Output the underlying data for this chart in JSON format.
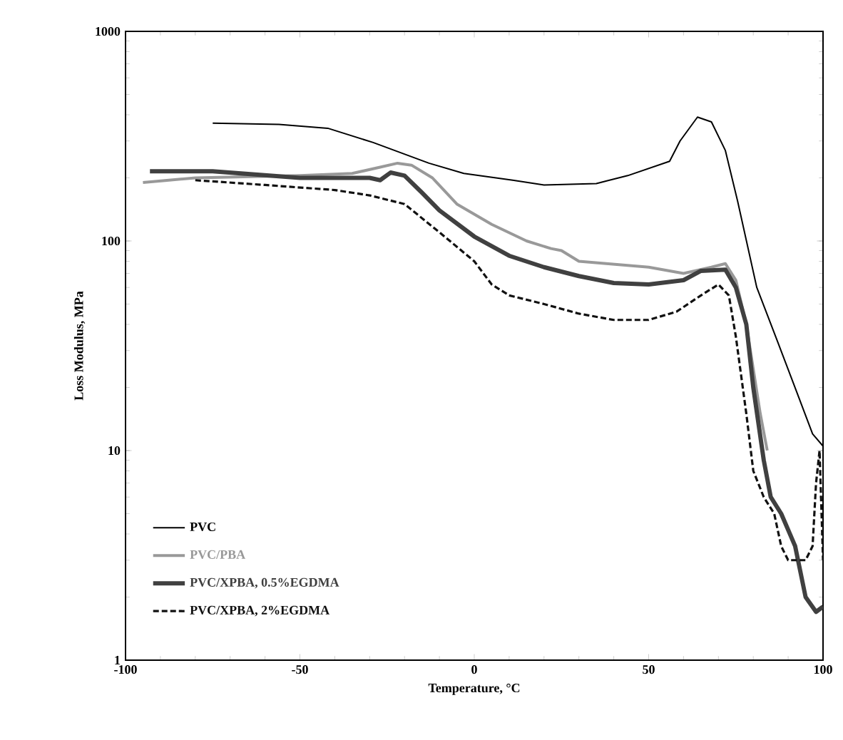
{
  "chart_data": {
    "type": "line",
    "xlabel": "Temperature, °C",
    "ylabel": "Loss Modulus, MPa",
    "xlim": [
      -100,
      100
    ],
    "xticks": [
      -100,
      -50,
      0,
      50,
      100
    ],
    "ylim": [
      1,
      1000
    ],
    "yticks": [
      1,
      10,
      100,
      1000
    ],
    "log": "y",
    "legend": "bottom left",
    "grid": false,
    "series": [
      {
        "name": "PVC",
        "color": "#000000",
        "line_style": "solid",
        "x": [
          -75,
          -56,
          -42,
          -29,
          -13,
          -3,
          11,
          20,
          35,
          44,
          56,
          59,
          64,
          68,
          72,
          75.5,
          81,
          87,
          93,
          97,
          100
        ],
        "values": [
          365,
          360,
          345,
          295,
          235,
          210,
          195,
          185,
          188,
          205,
          240,
          300,
          390,
          370,
          270,
          155,
          60,
          33,
          18,
          12,
          10.5
        ]
      },
      {
        "name": "PVC/PBA",
        "color": "#999999",
        "line_style": "solid",
        "x": [
          -95,
          -80,
          -50,
          -35,
          -27,
          -22,
          -18,
          -12,
          -5,
          5,
          15,
          22,
          25,
          30,
          50,
          60,
          68,
          72,
          75,
          78,
          82,
          84
        ],
        "values": [
          190,
          200,
          205,
          210,
          225,
          235,
          230,
          200,
          150,
          120,
          100,
          92,
          90,
          80,
          75,
          70,
          75,
          78,
          65,
          40,
          15,
          10
        ]
      },
      {
        "name": "PVC/XPBA, 0.5%EGDMA",
        "color": "#404040",
        "line_style": "solid",
        "x": [
          -93,
          -75,
          -50,
          -30,
          -27,
          -24,
          -20,
          -15,
          -10,
          0,
          10,
          20,
          30,
          40,
          50,
          60,
          65,
          72,
          75,
          78,
          80,
          83,
          85,
          88,
          92,
          95,
          98,
          100
        ],
        "values": [
          215,
          215,
          200,
          200,
          195,
          212,
          205,
          170,
          140,
          105,
          85,
          75,
          68,
          63,
          62,
          65,
          72,
          73,
          60,
          40,
          20,
          9,
          6,
          5,
          3.5,
          2.0,
          1.7,
          1.8
        ]
      },
      {
        "name": "PVC/XPBA, 2%EGDMA",
        "color": "#111111",
        "line_style": "dashed",
        "x": [
          -80,
          -60,
          -40,
          -30,
          -20,
          -10,
          0,
          5,
          10,
          20,
          30,
          40,
          50,
          58,
          65,
          70,
          73,
          75,
          78,
          80,
          83,
          86,
          88,
          90,
          95,
          97,
          98,
          99,
          100
        ],
        "values": [
          195,
          185,
          175,
          165,
          150,
          110,
          80,
          62,
          55,
          50,
          45,
          42,
          42,
          46,
          55,
          62,
          55,
          35,
          15,
          8,
          6,
          5,
          3.5,
          3.0,
          3.0,
          3.5,
          7,
          10,
          3
        ]
      }
    ]
  }
}
